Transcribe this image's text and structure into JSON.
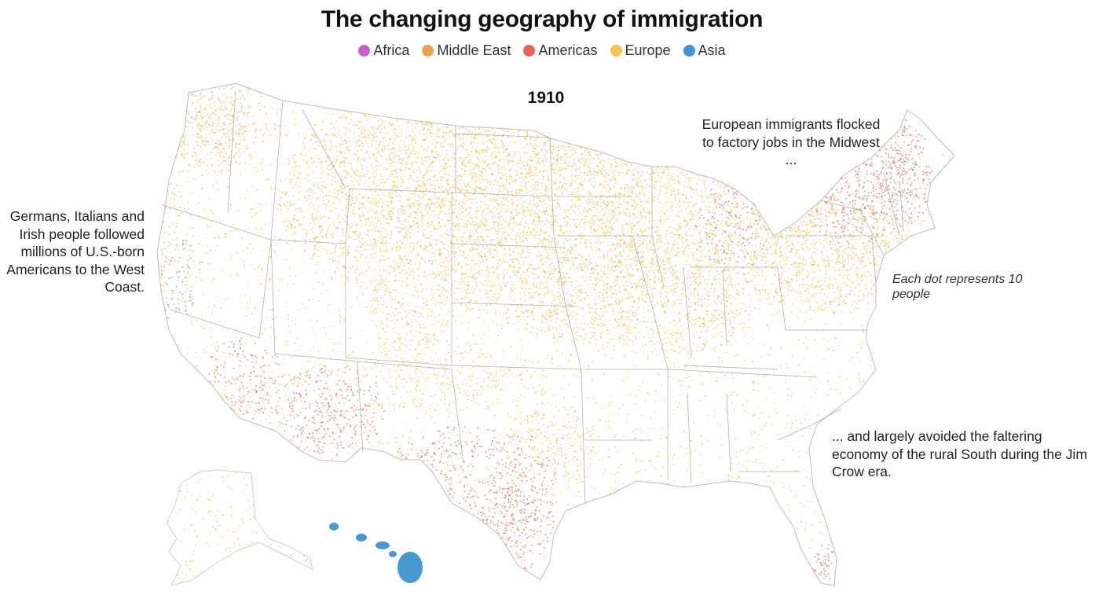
{
  "title": "The changing geography of immigration",
  "legend": [
    {
      "label": "Africa",
      "color": "#c65fd0"
    },
    {
      "label": "Middle East",
      "color": "#f0a14c"
    },
    {
      "label": "Americas",
      "color": "#e8605e"
    },
    {
      "label": "Europe",
      "color": "#f3c553"
    },
    {
      "label": "Asia",
      "color": "#3d95cf"
    }
  ],
  "year": "1910",
  "annotations": {
    "west_coast": "Germans, Italians and Irish people followed millions of U.S.-born Americans to the West Coast.",
    "midwest": "European immigrants flocked to factory jobs in the Midwest ...",
    "south": "... and largely avoided the faltering economy of the rural South during the Jim Crow era.",
    "dot_scale": "Each dot represents 10 people"
  },
  "map": {
    "regions": [
      "Contiguous United States",
      "Alaska",
      "Hawaii"
    ],
    "state_border_color": "#9a9a9a"
  }
}
